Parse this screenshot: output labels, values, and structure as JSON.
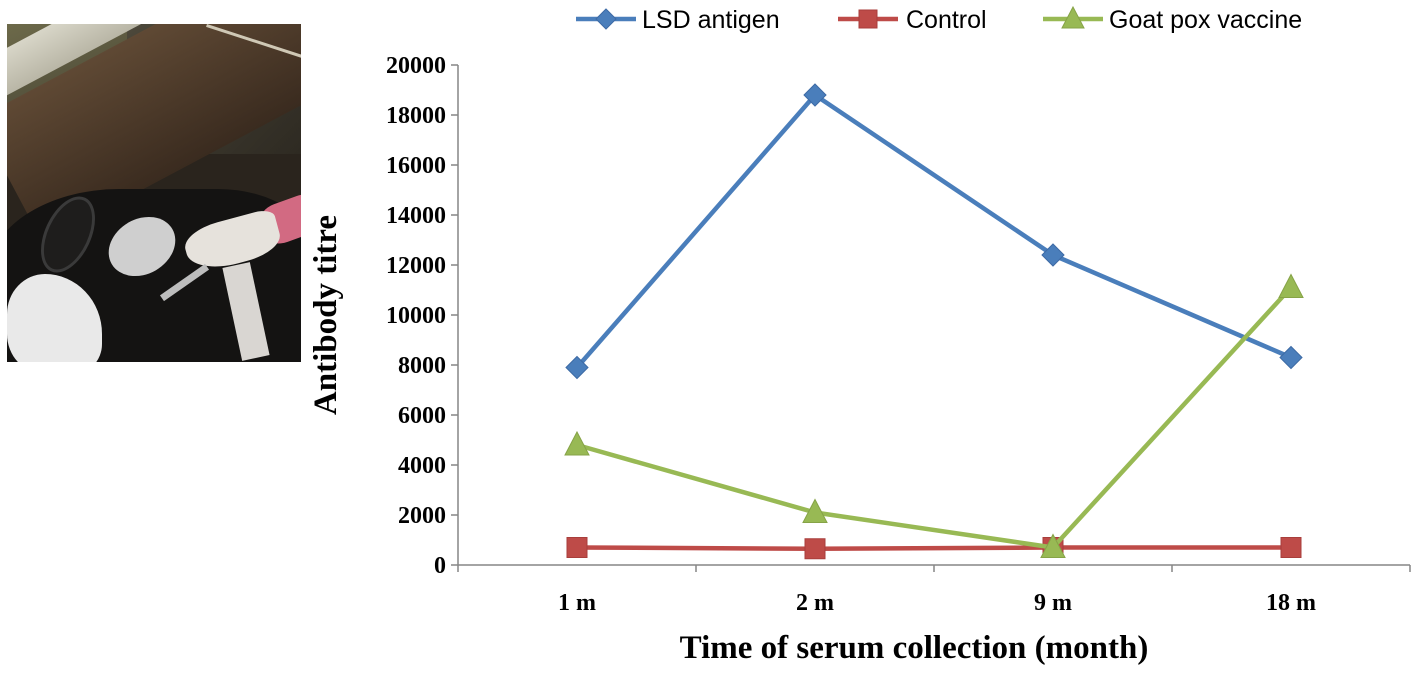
{
  "chart_data": {
    "type": "line",
    "title": "",
    "xlabel": "Time of serum collection (month)",
    "ylabel": "Antibody titre",
    "categories": [
      "1 m",
      "2 m",
      "9 m",
      "18 m"
    ],
    "ylim": [
      0,
      20000
    ],
    "yticks": [
      0,
      2000,
      4000,
      6000,
      8000,
      10000,
      12000,
      14000,
      16000,
      18000,
      20000
    ],
    "grid": false,
    "legend_position": "top",
    "series": [
      {
        "name": "LSD antigen",
        "color": "#4a7ebb",
        "marker": "diamond",
        "values": [
          7900,
          18800,
          12400,
          8300
        ]
      },
      {
        "name": "Control",
        "color": "#be4b48",
        "marker": "square",
        "values": [
          700,
          650,
          700,
          700
        ]
      },
      {
        "name": "Goat pox vaccine",
        "color": "#98b954",
        "marker": "triangle",
        "values": [
          4800,
          2100,
          700,
          11100
        ]
      }
    ]
  },
  "photo": {
    "subject": "cow being injected with syringe"
  }
}
